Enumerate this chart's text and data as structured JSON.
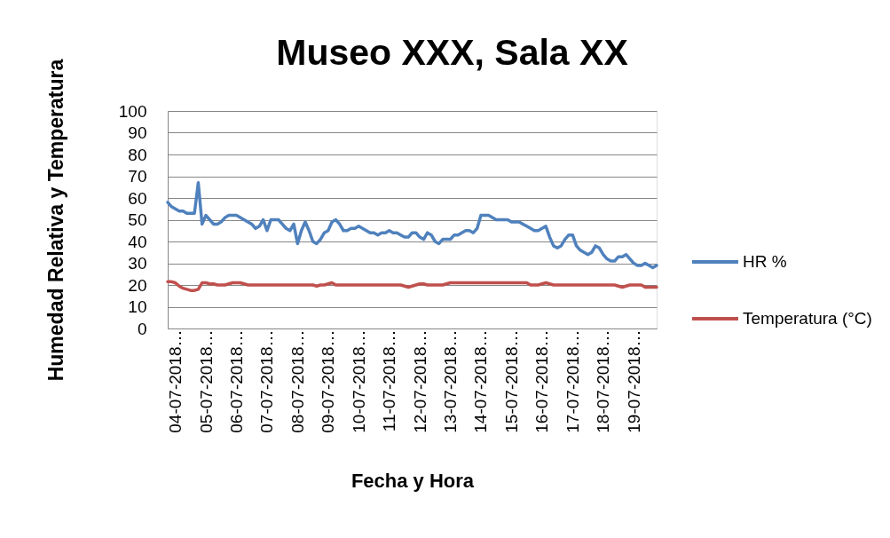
{
  "chart_data": {
    "type": "line",
    "title": "Museo XXX, Sala XX",
    "xlabel": "Fecha y Hora",
    "ylabel": "Humedad Relativa y Temperatura",
    "categories": [
      null,
      null,
      "04-07-2018…",
      null,
      null,
      null,
      null,
      null,
      null,
      null,
      "05-07-2018…",
      null,
      null,
      null,
      null,
      null,
      null,
      null,
      "06-07-2018…",
      null,
      null,
      null,
      null,
      null,
      null,
      null,
      "07-07-2018…",
      null,
      null,
      null,
      null,
      null,
      null,
      null,
      "08-07-2018…",
      null,
      null,
      null,
      null,
      null,
      null,
      null,
      "09-07-2018…",
      null,
      null,
      null,
      null,
      null,
      null,
      null,
      "10-07-2018…",
      null,
      null,
      null,
      null,
      null,
      null,
      null,
      "11-07-2018…",
      null,
      null,
      null,
      null,
      null,
      null,
      null,
      "12-07-2018…",
      null,
      null,
      null,
      null,
      null,
      null,
      null,
      "13-07-2018…",
      null,
      null,
      null,
      null,
      null,
      null,
      null,
      "14-07-2018…",
      null,
      null,
      null,
      null,
      null,
      null,
      null,
      "15-07-2018…",
      null,
      null,
      null,
      null,
      null,
      null,
      null,
      "16-07-2018…",
      null,
      null,
      null,
      null,
      null,
      null,
      null,
      "17-07-2018…",
      null,
      null,
      null,
      null,
      null,
      null,
      null,
      "18-07-2018…",
      null,
      null,
      null,
      null,
      null,
      null,
      null,
      "19-07-2018…",
      null,
      null,
      null,
      null,
      null,
      null
    ],
    "series": [
      {
        "name": "HR %",
        "color": "#4f81bd",
        "values": [
          58,
          56,
          55,
          54,
          54,
          53,
          53,
          53,
          67,
          48,
          52,
          50,
          48,
          48,
          49,
          51,
          52,
          52,
          52,
          51,
          50,
          49,
          48,
          46,
          47,
          50,
          45,
          50,
          50,
          50,
          48,
          46,
          45,
          48,
          39,
          45,
          49,
          45,
          40,
          39,
          41,
          44,
          45,
          49,
          50,
          48,
          45,
          45,
          46,
          46,
          47,
          46,
          45,
          44,
          44,
          43,
          44,
          44,
          45,
          44,
          44,
          43,
          42,
          42,
          44,
          44,
          42,
          41,
          44,
          43,
          40,
          39,
          41,
          41,
          41,
          43,
          43,
          44,
          45,
          45,
          44,
          46,
          52,
          52,
          52,
          51,
          50,
          50,
          50,
          50,
          49,
          49,
          49,
          48,
          47,
          46,
          45,
          45,
          46,
          47,
          42,
          38,
          37,
          38,
          41,
          43,
          43,
          38,
          36,
          35,
          34,
          35,
          38,
          37,
          34,
          32,
          31,
          31,
          33,
          33,
          34,
          32,
          30,
          29,
          29,
          30,
          29,
          28,
          29
        ]
      },
      {
        "name": "Temperatura (°C)",
        "color": "#c0504d",
        "values": [
          21.5,
          21.5,
          21,
          19.5,
          18.5,
          18,
          17.5,
          17.5,
          18,
          21,
          21,
          20.5,
          20.5,
          20,
          20,
          20,
          20.5,
          21,
          21,
          21,
          20.5,
          20,
          20,
          20,
          20,
          20,
          20,
          20,
          20,
          20,
          20,
          20,
          20,
          20,
          20,
          20,
          20,
          20,
          20,
          19.5,
          20,
          20,
          20.5,
          21,
          20,
          20,
          20,
          20,
          20,
          20,
          20,
          20,
          20,
          20,
          20,
          20,
          20,
          20,
          20,
          20,
          20,
          20,
          19.5,
          19,
          19.5,
          20,
          20.5,
          20.5,
          20,
          20,
          20,
          20,
          20,
          20.5,
          21,
          21,
          21,
          21,
          21,
          21,
          21,
          21,
          21,
          21,
          21,
          21,
          21,
          21,
          21,
          21,
          21,
          21,
          21,
          21,
          21,
          20,
          20,
          20,
          20.5,
          21,
          20.5,
          20,
          20,
          20,
          20,
          20,
          20,
          20,
          20,
          20,
          20,
          20,
          20,
          20,
          20,
          20,
          20,
          20,
          19.5,
          19,
          19.5,
          20,
          20,
          20,
          20,
          19,
          19,
          19,
          19
        ]
      }
    ],
    "ylim": [
      0,
      100
    ],
    "yticks": [
      0,
      10,
      20,
      30,
      40,
      50,
      60,
      70,
      80,
      90,
      100
    ],
    "grid": "y",
    "legend": "right"
  }
}
